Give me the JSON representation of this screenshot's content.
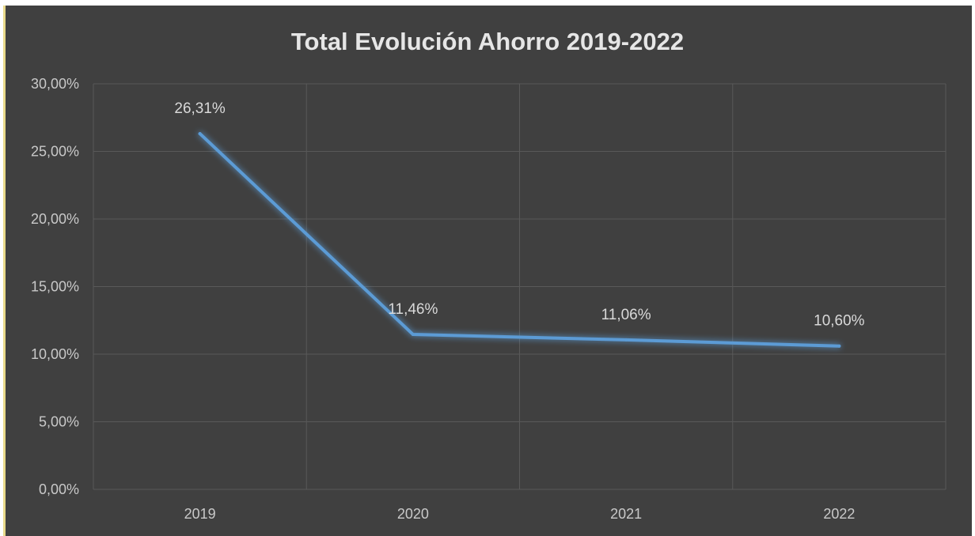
{
  "chart_data": {
    "type": "line",
    "title": "Total Evolución Ahorro 2019-2022",
    "categories": [
      "2019",
      "2020",
      "2021",
      "2022"
    ],
    "series": [
      {
        "values": [
          26.31,
          11.46,
          11.06,
          10.6
        ],
        "labels": [
          "26,31%",
          "11,46%",
          "11,06%",
          "10,60%"
        ]
      }
    ],
    "yticks": [
      0,
      5,
      10,
      15,
      20,
      25,
      30
    ],
    "ytick_labels": [
      "0,00%",
      "5,00%",
      "10,00%",
      "15,00%",
      "20,00%",
      "25,00%",
      "30,00%"
    ],
    "ylim": [
      0,
      30
    ],
    "grid": true,
    "legend": "none",
    "colors": {
      "background": "#404040",
      "line": "#5b9bd5",
      "grid": "#595959",
      "text": "#d9d9d9"
    }
  }
}
